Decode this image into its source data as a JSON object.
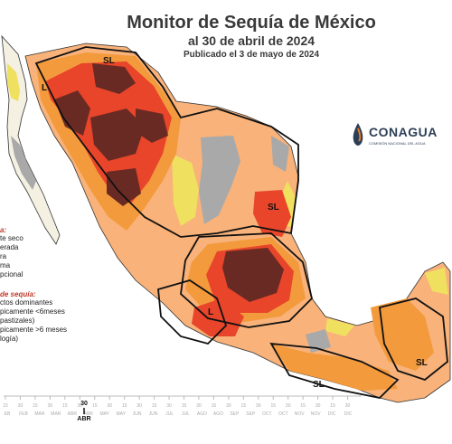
{
  "header": {
    "title": "Monitor de Sequía de México",
    "subtitle": "al 30 de abril de 2024",
    "published": "Publicado el 3 de mayo de 2024"
  },
  "logo": {
    "name": "CONAGUA",
    "sub": "COMISIÓN NACIONAL DEL AGUA"
  },
  "legend": {
    "intensity_header": "a:",
    "intensity_items": [
      "te seco",
      "erada",
      "ra",
      "ma",
      "pcional"
    ],
    "impact_header": "de sequía:",
    "impact_items": [
      "ctos dominantes",
      "picamente <6meses",
      "pastizales)",
      "picamente >6 meses",
      "logía)"
    ]
  },
  "region_labels": [
    {
      "text": "SL"
    },
    {
      "text": "L"
    },
    {
      "text": "SL"
    },
    {
      "text": "L"
    },
    {
      "text": "SL"
    },
    {
      "text": "SL"
    }
  ],
  "colors": {
    "ocean": "#ffffff",
    "land_none": "#f4f0e2",
    "abnormally_dry": "#f0e060",
    "moderate": "#f8b27a",
    "severe": "#f39a3d",
    "extreme": "#e8452a",
    "exceptional": "#6a2a24",
    "water": "#a9a9a9",
    "border": "#111111"
  },
  "timeline": {
    "day_ticks": [
      "15",
      "30",
      "15",
      "30",
      "15",
      "30",
      "15",
      "30",
      "15",
      "30",
      "15",
      "30",
      "15",
      "30",
      "15",
      "30",
      "15",
      "30",
      "15",
      "30",
      "15",
      "30",
      "15",
      "30"
    ],
    "months": [
      "EB",
      "FEB",
      "MAR",
      "MAR",
      "ABR",
      "ABR",
      "MAY",
      "MAY",
      "JUN",
      "JUN",
      "JUL",
      "JUL",
      "AGO",
      "AGO",
      "SEP",
      "SEP",
      "OCT",
      "OCT",
      "NOV",
      "NOV",
      "DIC",
      "DIC"
    ],
    "highlight_day": "30",
    "highlight_month": "ABR"
  }
}
